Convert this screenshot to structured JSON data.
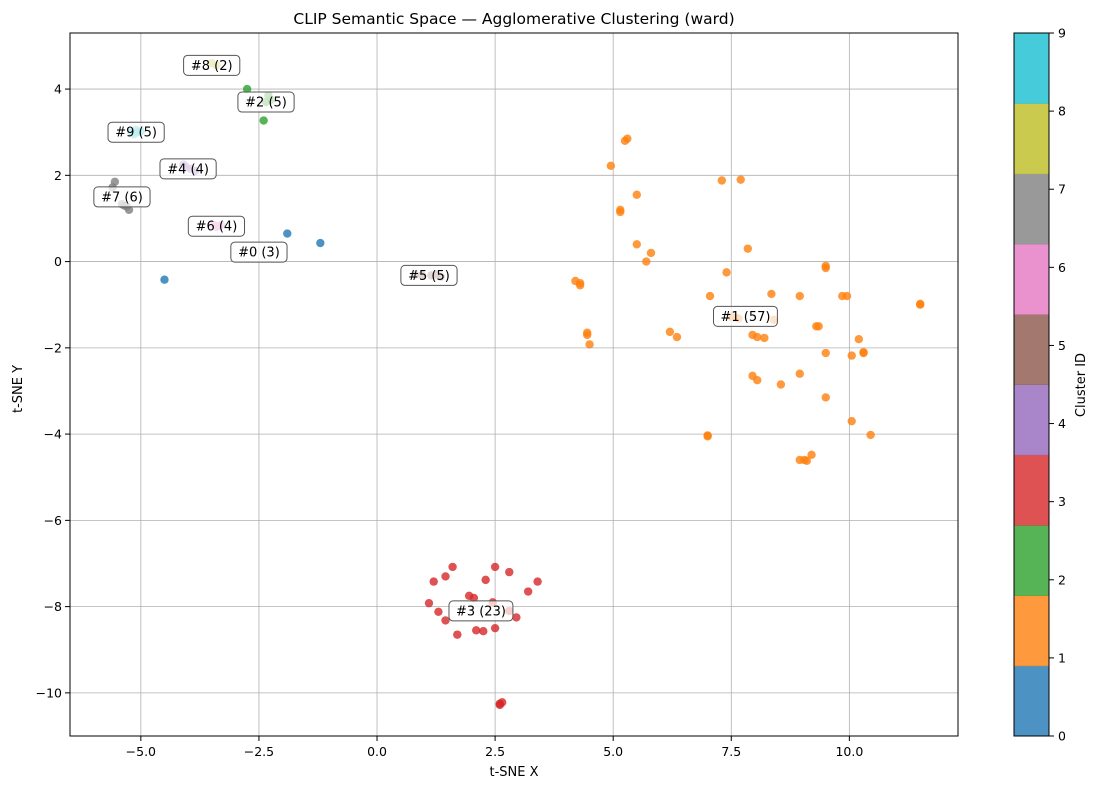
{
  "chart_data": {
    "type": "scatter",
    "title": "CLIP Semantic Space — Agglomerative Clustering (ward)",
    "xlabel": "t-SNE X",
    "ylabel": "t-SNE Y",
    "xlim": [
      -6.5,
      12.3
    ],
    "ylim": [
      -11.0,
      5.3
    ],
    "x_ticks": [
      -5.0,
      -2.5,
      0.0,
      2.5,
      5.0,
      7.5,
      10.0
    ],
    "x_tick_labels": [
      "−5.0",
      "−2.5",
      "0.0",
      "2.5",
      "5.0",
      "7.5",
      "10.0"
    ],
    "y_ticks": [
      -10,
      -8,
      -6,
      -4,
      -2,
      0,
      2,
      4
    ],
    "y_tick_labels": [
      "−10",
      "−8",
      "−6",
      "−4",
      "−2",
      "0",
      "2",
      "4"
    ],
    "grid": true,
    "colorbar": {
      "label": "Cluster ID",
      "min": 0,
      "max": 9,
      "ticks": [
        "0",
        "1",
        "2",
        "3",
        "4",
        "5",
        "6",
        "7",
        "8",
        "9"
      ],
      "colors": [
        "#1f77b4",
        "#ff7f0e",
        "#2ca02c",
        "#d62728",
        "#9467bd",
        "#8c564b",
        "#e377c2",
        "#7f7f7f",
        "#bcbd22",
        "#17becf"
      ]
    },
    "series": [
      {
        "cluster": 0,
        "color": "#1f77b4",
        "points": [
          [
            -4.5,
            -0.42
          ],
          [
            -1.9,
            0.65
          ],
          [
            -1.2,
            0.43
          ]
        ]
      },
      {
        "cluster": 1,
        "color": "#ff7f0e",
        "points": [
          [
            5.25,
            2.8
          ],
          [
            5.3,
            2.85
          ],
          [
            4.95,
            2.22
          ],
          [
            5.5,
            1.55
          ],
          [
            7.3,
            1.88
          ],
          [
            7.7,
            1.9
          ],
          [
            5.15,
            1.2
          ],
          [
            5.15,
            1.15
          ],
          [
            5.5,
            0.4
          ],
          [
            5.8,
            0.2
          ],
          [
            5.7,
            0.0
          ],
          [
            7.85,
            0.3
          ],
          [
            7.4,
            -0.25
          ],
          [
            9.5,
            -0.1
          ],
          [
            9.5,
            -0.15
          ],
          [
            4.2,
            -0.45
          ],
          [
            4.3,
            -0.5
          ],
          [
            4.3,
            -0.55
          ],
          [
            7.05,
            -0.8
          ],
          [
            8.35,
            -0.75
          ],
          [
            8.95,
            -0.8
          ],
          [
            9.85,
            -0.8
          ],
          [
            9.95,
            -0.8
          ],
          [
            11.5,
            -1.0
          ],
          [
            11.5,
            -0.98
          ],
          [
            8.4,
            -1.35
          ],
          [
            9.3,
            -1.5
          ],
          [
            9.35,
            -1.5
          ],
          [
            4.45,
            -1.65
          ],
          [
            4.45,
            -1.7
          ],
          [
            6.2,
            -1.63
          ],
          [
            6.35,
            -1.75
          ],
          [
            7.95,
            -1.7
          ],
          [
            8.05,
            -1.75
          ],
          [
            8.2,
            -1.77
          ],
          [
            10.2,
            -1.8
          ],
          [
            4.5,
            -1.92
          ],
          [
            9.5,
            -2.12
          ],
          [
            10.05,
            -2.18
          ],
          [
            10.3,
            -2.1
          ],
          [
            10.3,
            -2.12
          ],
          [
            7.95,
            -2.65
          ],
          [
            8.05,
            -2.75
          ],
          [
            8.95,
            -2.6
          ],
          [
            8.55,
            -2.85
          ],
          [
            9.5,
            -3.15
          ],
          [
            10.05,
            -3.7
          ],
          [
            10.45,
            -4.02
          ],
          [
            7.0,
            -4.03
          ],
          [
            7.0,
            -4.05
          ],
          [
            8.95,
            -4.6
          ],
          [
            9.05,
            -4.6
          ],
          [
            9.1,
            -4.62
          ],
          [
            9.2,
            -4.48
          ],
          [
            7.5,
            -1.28
          ],
          [
            7.6,
            -1.3
          ],
          [
            7.65,
            -1.32
          ]
        ]
      },
      {
        "cluster": 2,
        "color": "#2ca02c",
        "points": [
          [
            -2.75,
            4.0
          ],
          [
            -2.4,
            3.27
          ],
          [
            -2.3,
            3.85
          ],
          [
            -2.25,
            3.75
          ],
          [
            -2.35,
            3.7
          ]
        ]
      },
      {
        "cluster": 3,
        "color": "#d62728",
        "points": [
          [
            1.6,
            -7.08
          ],
          [
            2.5,
            -7.08
          ],
          [
            1.45,
            -7.3
          ],
          [
            2.3,
            -7.38
          ],
          [
            1.2,
            -7.42
          ],
          [
            2.8,
            -7.2
          ],
          [
            3.4,
            -7.42
          ],
          [
            3.2,
            -7.65
          ],
          [
            1.95,
            -7.75
          ],
          [
            2.05,
            -7.8
          ],
          [
            2.45,
            -7.9
          ],
          [
            1.1,
            -7.92
          ],
          [
            1.3,
            -8.12
          ],
          [
            2.8,
            -8.1
          ],
          [
            2.95,
            -8.25
          ],
          [
            1.45,
            -8.32
          ],
          [
            1.7,
            -8.65
          ],
          [
            2.1,
            -8.55
          ],
          [
            2.25,
            -8.57
          ],
          [
            2.5,
            -8.5
          ],
          [
            2.6,
            -10.25
          ],
          [
            2.65,
            -10.22
          ],
          [
            2.6,
            -10.28
          ]
        ]
      },
      {
        "cluster": 4,
        "color": "#9467bd",
        "points": [
          [
            -4.1,
            2.25
          ],
          [
            -4.05,
            2.2
          ],
          [
            -3.95,
            2.15
          ],
          [
            -3.85,
            2.1
          ]
        ]
      },
      {
        "cluster": 5,
        "color": "#8c564b",
        "points": [
          [
            0.8,
            -0.3
          ],
          [
            1.25,
            -0.3
          ],
          [
            1.35,
            -0.35
          ],
          [
            0.95,
            -0.32
          ],
          [
            1.15,
            -0.32
          ]
        ]
      },
      {
        "cluster": 6,
        "color": "#e377c2",
        "points": [
          [
            -3.45,
            0.85
          ],
          [
            -3.35,
            0.82
          ],
          [
            -3.3,
            0.85
          ],
          [
            -3.4,
            0.8
          ]
        ]
      },
      {
        "cluster": 7,
        "color": "#7f7f7f",
        "points": [
          [
            -5.55,
            1.85
          ],
          [
            -5.6,
            1.72
          ],
          [
            -5.35,
            1.3
          ],
          [
            -5.25,
            1.2
          ],
          [
            -5.3,
            1.28
          ],
          [
            -5.4,
            1.33
          ]
        ]
      },
      {
        "cluster": 8,
        "color": "#bcbd22",
        "points": [
          [
            -3.5,
            4.6
          ],
          [
            -3.4,
            4.55
          ]
        ]
      },
      {
        "cluster": 9,
        "color": "#17becf",
        "points": [
          [
            -5.2,
            3.0
          ],
          [
            -5.1,
            3.05
          ],
          [
            -5.05,
            3.0
          ],
          [
            -5.15,
            2.95
          ],
          [
            -5.0,
            3.02
          ]
        ]
      }
    ],
    "annotations": [
      {
        "text": "#8 (2)",
        "x": -3.5,
        "y": 4.55
      },
      {
        "text": "#2 (5)",
        "x": -2.35,
        "y": 3.7
      },
      {
        "text": "#9 (5)",
        "x": -5.1,
        "y": 3.0
      },
      {
        "text": "#4 (4)",
        "x": -4.0,
        "y": 2.15
      },
      {
        "text": "#7 (6)",
        "x": -5.4,
        "y": 1.5
      },
      {
        "text": "#6 (4)",
        "x": -3.4,
        "y": 0.82
      },
      {
        "text": "#0 (3)",
        "x": -2.5,
        "y": 0.22
      },
      {
        "text": "#5 (5)",
        "x": 1.1,
        "y": -0.32
      },
      {
        "text": "#1 (57)",
        "x": 7.8,
        "y": -1.27
      },
      {
        "text": "#3 (23)",
        "x": 2.2,
        "y": -8.1
      }
    ]
  }
}
